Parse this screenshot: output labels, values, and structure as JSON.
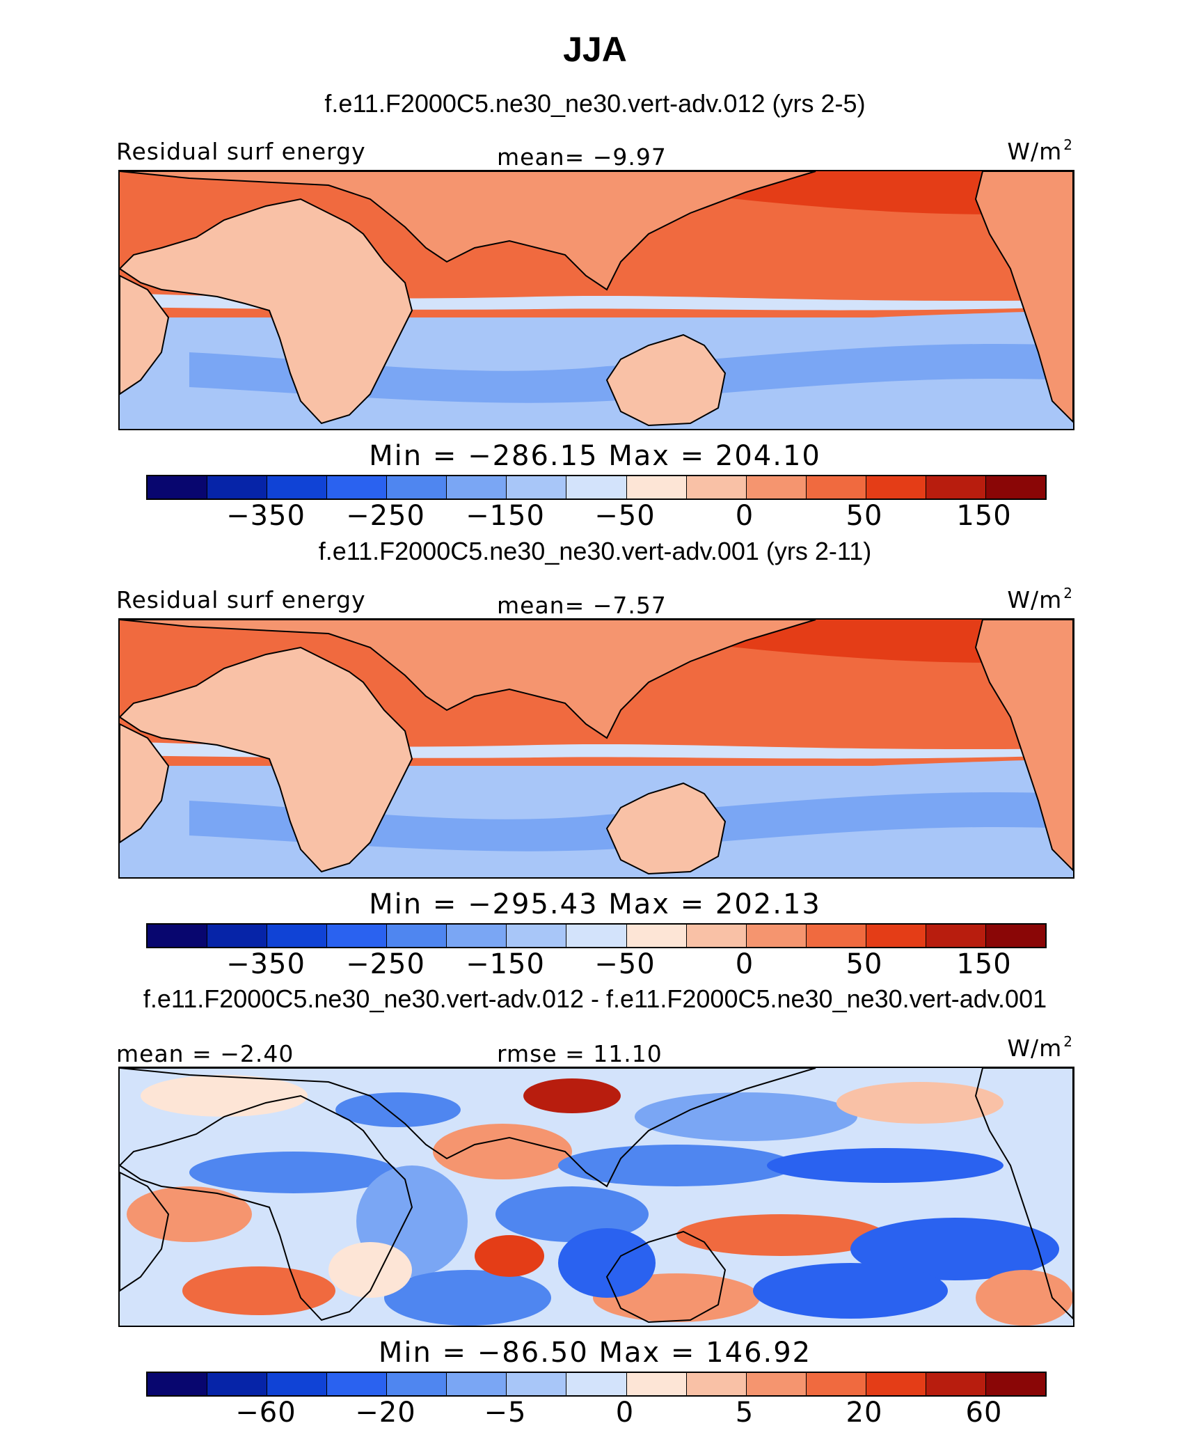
{
  "title": "JJA",
  "panels": [
    {
      "subtitle": "f.e11.F2000C5.ne30_ne30.vert-adv.012 (yrs 2-5)",
      "left_label": "Residual surf energy",
      "center_label": "mean=  −9.97",
      "units": "W/m",
      "units_sup": "2",
      "minmax": "Min = −286.15 Max = 204.10",
      "ticks": [
        "−350",
        "−250",
        "−150",
        "−50",
        "0",
        "50",
        "150"
      ],
      "palette": "abs",
      "field_mean": -9.97,
      "field_min": -286.15,
      "field_max": 204.1
    },
    {
      "subtitle": "f.e11.F2000C5.ne30_ne30.vert-adv.001 (yrs 2-11)",
      "left_label": "Residual surf energy",
      "center_label": "mean=  −7.57",
      "units": "W/m",
      "units_sup": "2",
      "minmax": "Min = −295.43 Max = 202.13",
      "ticks": [
        "−350",
        "−250",
        "−150",
        "−50",
        "0",
        "50",
        "150"
      ],
      "palette": "abs",
      "field_mean": -7.57,
      "field_min": -295.43,
      "field_max": 202.13
    },
    {
      "subtitle": "f.e11.F2000C5.ne30_ne30.vert-adv.012 - f.e11.F2000C5.ne30_ne30.vert-adv.001",
      "left_label": "mean =  −2.40",
      "center_label": "rmse =  11.10",
      "units": "W/m",
      "units_sup": "2",
      "minmax": "Min = −86.50 Max = 146.92",
      "ticks": [
        "−60",
        "−20",
        "−5",
        "0",
        "5",
        "20",
        "60"
      ],
      "palette": "diff",
      "field_mean": -2.4,
      "field_min": -86.5,
      "field_max": 146.92
    }
  ],
  "colorbar_colors": [
    "#08066f",
    "#0624a8",
    "#1043d6",
    "#2a62f0",
    "#4f86f0",
    "#7aa6f4",
    "#a8c6f8",
    "#d3e3fb",
    "#fde5d6",
    "#f9c1a6",
    "#f5956f",
    "#f06a3f",
    "#e43d17",
    "#b81d0e",
    "#8a0606"
  ]
}
